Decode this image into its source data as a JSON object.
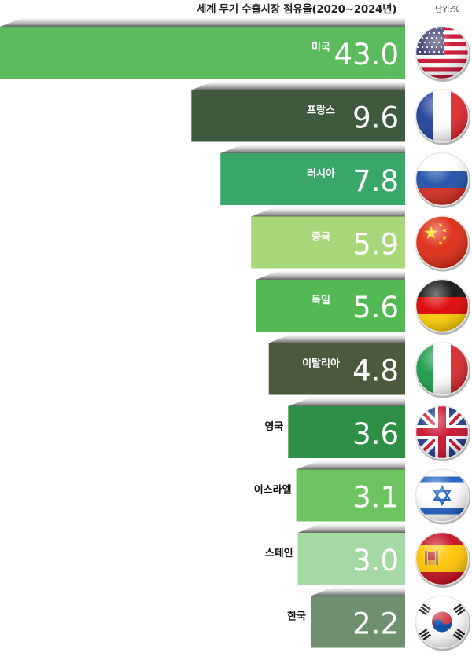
{
  "chart_data": {
    "type": "bar",
    "orientation": "horizontal",
    "title": "세계 무기 수출시장 점유율(2020~2024년)",
    "unit": "단위:%",
    "categories": [
      "미국",
      "프랑스",
      "러시아",
      "중국",
      "독일",
      "이탈리아",
      "영국",
      "이스라엘",
      "스페인",
      "한국"
    ],
    "values": [
      43.0,
      9.6,
      7.8,
      5.9,
      5.6,
      4.8,
      3.6,
      3.1,
      3.0,
      2.2
    ],
    "value_labels": [
      "43.0",
      "9.6",
      "7.8",
      "5.9",
      "5.6",
      "4.8",
      "3.6",
      "3.1",
      "3.0",
      "2.2"
    ],
    "bar_colors": [
      "#5dbb5f",
      "#3f5a3e",
      "#3aa76a",
      "#a8d77a",
      "#52b954",
      "#4b5a3f",
      "#2f8f45",
      "#6cc35f",
      "#a4d9a6",
      "#6f8f6f"
    ],
    "flag_icons": [
      "us-flag-icon",
      "france-flag-icon",
      "russia-flag-icon",
      "china-flag-icon",
      "germany-flag-icon",
      "italy-flag-icon",
      "uk-flag-icon",
      "israel-flag-icon",
      "spain-flag-icon",
      "korea-flag-icon"
    ]
  }
}
